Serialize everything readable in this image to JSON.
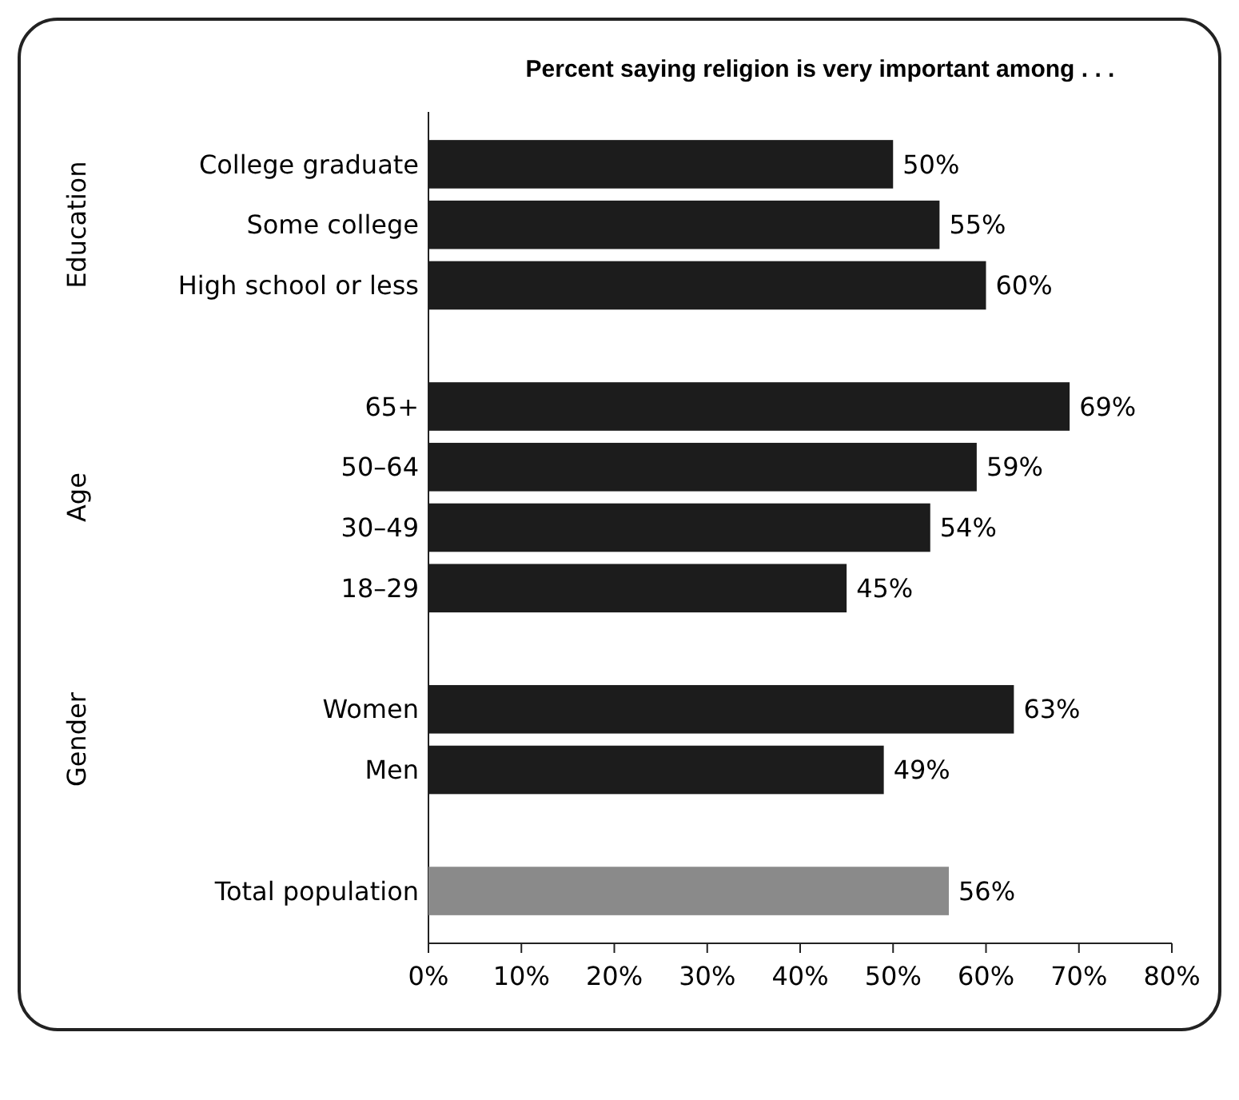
{
  "chart_data": {
    "type": "bar",
    "orientation": "horizontal",
    "title": "Percent saying religion is very important among . . .",
    "categories": [
      "College graduate",
      "Some college",
      "High school or less",
      null,
      "65+",
      "50–64",
      "30–49",
      "18–29",
      null,
      "Women",
      "Men",
      null,
      "Total population"
    ],
    "values": [
      50,
      55,
      60,
      null,
      69,
      59,
      54,
      45,
      null,
      63,
      49,
      null,
      56
    ],
    "value_labels": [
      "50%",
      "55%",
      "60%",
      null,
      "69%",
      "59%",
      "54%",
      "45%",
      null,
      "63%",
      "49%",
      null,
      "56%"
    ],
    "colors": [
      "#1c1c1c",
      "#1c1c1c",
      "#1c1c1c",
      null,
      "#1c1c1c",
      "#1c1c1c",
      "#1c1c1c",
      "#1c1c1c",
      null,
      "#1c1c1c",
      "#1c1c1c",
      null,
      "#8a8a8a"
    ],
    "xlim": [
      0,
      80
    ],
    "xticks": [
      {
        "value": 0,
        "label": "0%"
      },
      {
        "value": 10,
        "label": "10%"
      },
      {
        "value": 20,
        "label": "20%"
      },
      {
        "value": 30,
        "label": "30%"
      },
      {
        "value": 40,
        "label": "40%"
      },
      {
        "value": 50,
        "label": "50%"
      },
      {
        "value": 60,
        "label": "60%"
      },
      {
        "value": 70,
        "label": "70%"
      },
      {
        "value": 80,
        "label": "80%"
      }
    ],
    "annotations": [
      "Education",
      "Age",
      "Gender"
    ],
    "grid": false
  }
}
